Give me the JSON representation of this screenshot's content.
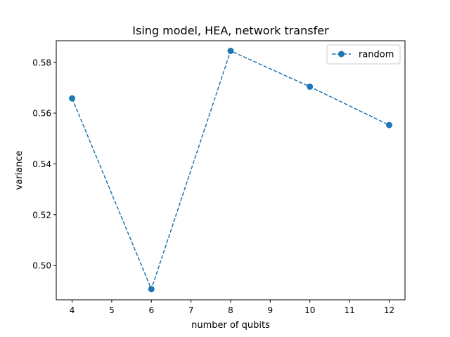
{
  "chart_data": {
    "type": "line",
    "title": "Ising model, HEA, network transfer",
    "xlabel": "number of qubits",
    "ylabel": "variance",
    "xlim": [
      3.6,
      12.4
    ],
    "ylim": [
      0.4865,
      0.5885
    ],
    "xticks": [
      4,
      5,
      6,
      7,
      8,
      9,
      10,
      11,
      12
    ],
    "yticks": [
      0.5,
      0.52,
      0.54,
      0.56,
      0.58
    ],
    "ytick_labels": [
      "0.50",
      "0.52",
      "0.54",
      "0.56",
      "0.58"
    ],
    "grid": false,
    "legend_position": "top-right",
    "series": [
      {
        "name": "random",
        "color": "#1f77b4",
        "linestyle": "dashed",
        "marker": "circle",
        "x": [
          4,
          6,
          8,
          10,
          12
        ],
        "y": [
          0.5658,
          0.4907,
          0.5845,
          0.5704,
          0.5553
        ]
      }
    ]
  }
}
